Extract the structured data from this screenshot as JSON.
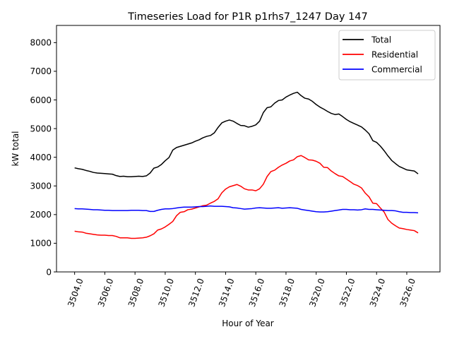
{
  "chart_data": {
    "type": "line",
    "title": "Timeseries Load for P1R p1rhs7_1247  Day 147",
    "xlabel": "Hour of Year",
    "ylabel": "kW total",
    "xlim": [
      3502.8,
      3528.2
    ],
    "ylim": [
      0,
      8600
    ],
    "xticks": [
      3504,
      3506,
      3508,
      3510,
      3512,
      3514,
      3516,
      3518,
      3520,
      3522,
      3524,
      3526
    ],
    "xtick_labels": [
      "3504.0",
      "3506.0",
      "3508.0",
      "3510.0",
      "3512.0",
      "3514.0",
      "3516.0",
      "3518.0",
      "3520.0",
      "3522.0",
      "3524.0",
      "3526.0"
    ],
    "yticks": [
      0,
      1000,
      2000,
      3000,
      4000,
      5000,
      6000,
      7000,
      8000
    ],
    "ytick_labels": [
      "0",
      "1000",
      "2000",
      "3000",
      "4000",
      "5000",
      "6000",
      "7000",
      "8000"
    ],
    "legend_position": "top-right",
    "x_start": 3504.0,
    "x_step": 0.25,
    "series": [
      {
        "name": "Total",
        "color": "#000000",
        "values": [
          3630,
          3600,
          3580,
          3540,
          3510,
          3470,
          3450,
          3440,
          3430,
          3420,
          3410,
          3360,
          3330,
          3340,
          3320,
          3320,
          3330,
          3340,
          3330,
          3350,
          3450,
          3620,
          3660,
          3750,
          3880,
          3990,
          4250,
          4340,
          4380,
          4420,
          4460,
          4500,
          4560,
          4610,
          4680,
          4730,
          4760,
          4850,
          5040,
          5200,
          5260,
          5300,
          5260,
          5180,
          5110,
          5100,
          5050,
          5080,
          5130,
          5260,
          5560,
          5730,
          5760,
          5890,
          5980,
          6000,
          6100,
          6170,
          6230,
          6270,
          6150,
          6060,
          6030,
          5950,
          5840,
          5750,
          5680,
          5600,
          5530,
          5490,
          5510,
          5420,
          5320,
          5240,
          5180,
          5120,
          5060,
          4950,
          4820,
          4580,
          4520,
          4390,
          4230,
          4050,
          3890,
          3780,
          3680,
          3620,
          3560,
          3540,
          3520,
          3420
        ]
      },
      {
        "name": "Residential",
        "color": "#ff0000",
        "values": [
          1420,
          1400,
          1390,
          1350,
          1330,
          1310,
          1290,
          1280,
          1280,
          1270,
          1270,
          1240,
          1190,
          1190,
          1190,
          1170,
          1170,
          1180,
          1190,
          1210,
          1260,
          1330,
          1460,
          1500,
          1570,
          1660,
          1760,
          1960,
          2080,
          2100,
          2170,
          2190,
          2230,
          2270,
          2310,
          2330,
          2400,
          2460,
          2550,
          2760,
          2890,
          2970,
          3010,
          3050,
          2990,
          2900,
          2860,
          2860,
          2830,
          2900,
          3060,
          3330,
          3500,
          3550,
          3650,
          3730,
          3790,
          3870,
          3910,
          4020,
          4060,
          3990,
          3910,
          3900,
          3860,
          3790,
          3650,
          3640,
          3520,
          3430,
          3350,
          3330,
          3240,
          3150,
          3060,
          3010,
          2930,
          2750,
          2620,
          2400,
          2380,
          2230,
          2090,
          1830,
          1700,
          1610,
          1530,
          1510,
          1480,
          1460,
          1440,
          1360
        ]
      },
      {
        "name": "Commercial",
        "color": "#0000ff",
        "values": [
          2210,
          2200,
          2200,
          2190,
          2180,
          2170,
          2170,
          2160,
          2150,
          2150,
          2140,
          2140,
          2140,
          2140,
          2140,
          2150,
          2150,
          2150,
          2140,
          2140,
          2110,
          2110,
          2150,
          2180,
          2200,
          2200,
          2210,
          2230,
          2250,
          2260,
          2260,
          2260,
          2270,
          2280,
          2280,
          2290,
          2300,
          2290,
          2290,
          2290,
          2280,
          2270,
          2240,
          2230,
          2210,
          2190,
          2200,
          2210,
          2230,
          2240,
          2230,
          2220,
          2220,
          2230,
          2240,
          2220,
          2230,
          2240,
          2230,
          2220,
          2180,
          2160,
          2140,
          2120,
          2100,
          2090,
          2090,
          2100,
          2120,
          2140,
          2160,
          2180,
          2180,
          2170,
          2170,
          2160,
          2170,
          2200,
          2180,
          2180,
          2170,
          2160,
          2150,
          2140,
          2140,
          2130,
          2100,
          2080,
          2080,
          2070,
          2070,
          2060
        ]
      }
    ]
  }
}
